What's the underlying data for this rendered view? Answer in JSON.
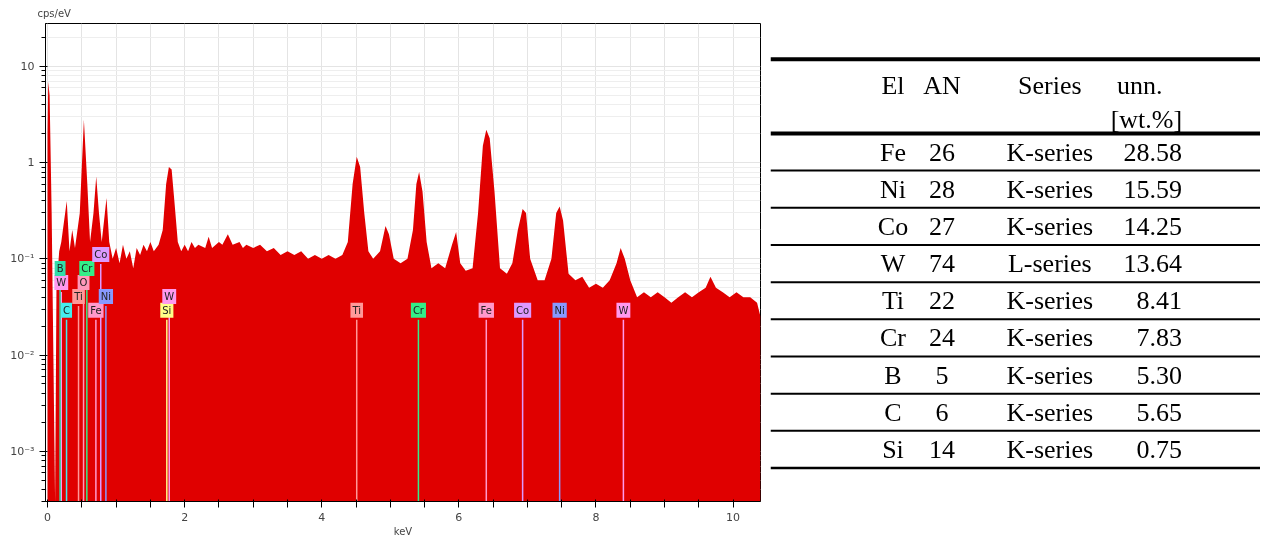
{
  "chart_data": [
    {
      "type": "area",
      "xlabel": "keV",
      "ylabel": "cps/eV",
      "log": true,
      "grid": true,
      "color": "#e00000",
      "xlim": [
        -0.03,
        10.4
      ],
      "ylim": [
        0.0003,
        28
      ],
      "xticks": [
        0,
        {
          "value": 0.5,
          "label": null
        },
        {
          "value": 1,
          "label": null
        },
        {
          "value": 1.5,
          "label": null
        },
        2,
        {
          "value": 2.5,
          "label": null
        },
        {
          "value": 3,
          "label": null
        },
        {
          "value": 3.5,
          "label": null
        },
        4,
        {
          "value": 4.5,
          "label": null
        },
        {
          "value": 5,
          "label": null
        },
        {
          "value": 5.5,
          "label": null
        },
        6,
        {
          "value": 6.5,
          "label": null
        },
        {
          "value": 7,
          "label": null
        },
        {
          "value": 7.5,
          "label": null
        },
        8,
        {
          "value": 8.5,
          "label": null
        },
        {
          "value": 9,
          "label": null
        },
        {
          "value": 9.5,
          "label": null
        },
        10
      ],
      "yticks": [
        {
          "value": 0.001,
          "label": "10⁻³"
        },
        {
          "value": 0.01,
          "label": "10⁻²"
        },
        {
          "value": 0.1,
          "label": "10⁻¹"
        },
        1,
        10
      ],
      "x": [
        0.0,
        0.01,
        0.03,
        0.06,
        0.09,
        0.11,
        0.13,
        0.17,
        0.2,
        0.28,
        0.32,
        0.36,
        0.4,
        0.47,
        0.53,
        0.58,
        0.62,
        0.67,
        0.71,
        0.75,
        0.79,
        0.86,
        0.9,
        0.95,
        1.0,
        1.05,
        1.1,
        1.15,
        1.2,
        1.25,
        1.3,
        1.35,
        1.4,
        1.45,
        1.5,
        1.55,
        1.62,
        1.68,
        1.73,
        1.77,
        1.81,
        1.85,
        1.9,
        1.95,
        2.0,
        2.05,
        2.1,
        2.15,
        2.2,
        2.3,
        2.35,
        2.4,
        2.5,
        2.55,
        2.63,
        2.7,
        2.8,
        2.85,
        2.9,
        3.0,
        3.1,
        3.2,
        3.3,
        3.4,
        3.5,
        3.6,
        3.7,
        3.8,
        3.9,
        4.0,
        4.1,
        4.2,
        4.3,
        4.38,
        4.45,
        4.51,
        4.56,
        4.62,
        4.68,
        4.75,
        4.85,
        4.93,
        4.98,
        5.05,
        5.15,
        5.25,
        5.33,
        5.38,
        5.42,
        5.47,
        5.53,
        5.6,
        5.7,
        5.8,
        5.9,
        5.96,
        6.02,
        6.1,
        6.2,
        6.28,
        6.35,
        6.4,
        6.45,
        6.52,
        6.6,
        6.7,
        6.78,
        6.86,
        6.93,
        6.98,
        7.04,
        7.15,
        7.25,
        7.35,
        7.42,
        7.47,
        7.52,
        7.6,
        7.7,
        7.8,
        7.9,
        8.0,
        8.1,
        8.2,
        8.3,
        8.36,
        8.42,
        8.5,
        8.6,
        8.7,
        8.8,
        8.9,
        9.0,
        9.1,
        9.2,
        9.3,
        9.4,
        9.5,
        9.6,
        9.67,
        9.75,
        9.85,
        9.95,
        10.05,
        10.15,
        10.25,
        10.35,
        10.4
      ],
      "values": [
        2.0,
        7.0,
        5.0,
        0.3,
        0.005,
        0.0003,
        0.05,
        0.12,
        0.15,
        0.4,
        0.12,
        0.2,
        0.13,
        0.3,
        2.8,
        0.6,
        0.15,
        0.3,
        0.72,
        0.3,
        0.15,
        0.43,
        0.15,
        0.1,
        0.13,
        0.09,
        0.14,
        0.1,
        0.12,
        0.08,
        0.13,
        0.11,
        0.14,
        0.12,
        0.15,
        0.12,
        0.14,
        0.2,
        0.6,
        0.9,
        0.85,
        0.4,
        0.15,
        0.12,
        0.14,
        0.12,
        0.15,
        0.13,
        0.14,
        0.13,
        0.17,
        0.13,
        0.15,
        0.14,
        0.18,
        0.14,
        0.15,
        0.13,
        0.14,
        0.13,
        0.14,
        0.12,
        0.13,
        0.11,
        0.12,
        0.11,
        0.12,
        0.1,
        0.11,
        0.1,
        0.11,
        0.1,
        0.11,
        0.15,
        0.6,
        1.15,
        0.9,
        0.3,
        0.12,
        0.1,
        0.12,
        0.22,
        0.18,
        0.1,
        0.09,
        0.1,
        0.2,
        0.6,
        0.8,
        0.5,
        0.15,
        0.08,
        0.09,
        0.08,
        0.14,
        0.19,
        0.09,
        0.075,
        0.08,
        0.3,
        1.5,
        2.2,
        1.8,
        0.5,
        0.08,
        0.07,
        0.09,
        0.2,
        0.33,
        0.3,
        0.1,
        0.06,
        0.06,
        0.1,
        0.3,
        0.35,
        0.25,
        0.07,
        0.06,
        0.065,
        0.05,
        0.055,
        0.05,
        0.06,
        0.09,
        0.13,
        0.1,
        0.06,
        0.04,
        0.045,
        0.04,
        0.045,
        0.04,
        0.035,
        0.04,
        0.045,
        0.04,
        0.045,
        0.05,
        0.065,
        0.05,
        0.045,
        0.04,
        0.045,
        0.04,
        0.04,
        0.035,
        0.025
      ],
      "ref_lines": [
        {
          "axis": "x",
          "value": 0.277,
          "label": "C",
          "color": "#44eeee"
        },
        {
          "axis": "x",
          "value": 0.705,
          "label": "Fe",
          "color": "#ff99cc"
        },
        {
          "axis": "x",
          "value": 0.452,
          "label": "Ti",
          "color": "#ff9999"
        },
        {
          "axis": "x",
          "value": 0.525,
          "label": "O",
          "color": "#ff99bb"
        },
        {
          "axis": "x",
          "value": 0.851,
          "label": "Ni",
          "color": "#8899ff"
        },
        {
          "axis": "x",
          "value": 0.2,
          "label": "W",
          "color": "#ff99ee"
        },
        {
          "axis": "x",
          "value": 0.573,
          "label": "Cr",
          "color": "#33ee88"
        },
        {
          "axis": "x",
          "value": 0.776,
          "label": "Co",
          "color": "#dd99ff"
        },
        {
          "axis": "x",
          "value": 0.183,
          "label": "B",
          "color": "#33ddaa"
        },
        {
          "axis": "x",
          "value": 1.74,
          "label": "Si",
          "color": "#ffff88"
        },
        {
          "axis": "x",
          "value": 1.775,
          "label": "W",
          "color": "#ff99ee"
        },
        {
          "axis": "x",
          "value": 4.51,
          "label": "Ti",
          "color": "#ff9999"
        },
        {
          "axis": "x",
          "value": 5.41,
          "label": "Cr",
          "color": "#33ee88"
        },
        {
          "axis": "x",
          "value": 6.4,
          "label": "Fe",
          "color": "#ff99cc"
        },
        {
          "axis": "x",
          "value": 6.93,
          "label": "Co",
          "color": "#dd99ff"
        },
        {
          "axis": "x",
          "value": 7.47,
          "label": "Ni",
          "color": "#8899ff"
        },
        {
          "axis": "x",
          "value": 8.4,
          "label": "W",
          "color": "#ff99ee"
        }
      ]
    },
    {
      "type": "other",
      "categories": [
        "El",
        "AN",
        "Series",
        "unn. [wt.%]"
      ],
      "annotations": [
        "Fe 26 K-series 28.58",
        "Ni 28 K-series 15.59",
        "Co 27 K-series 14.25",
        "W 74 L-series 13.64",
        "Ti 22 K-series 8.41",
        "Cr 24 K-series 7.83",
        "B 5 K-series 5.30",
        "C 6 K-series 5.65",
        "Si 14 K-series 0.75"
      ]
    }
  ]
}
